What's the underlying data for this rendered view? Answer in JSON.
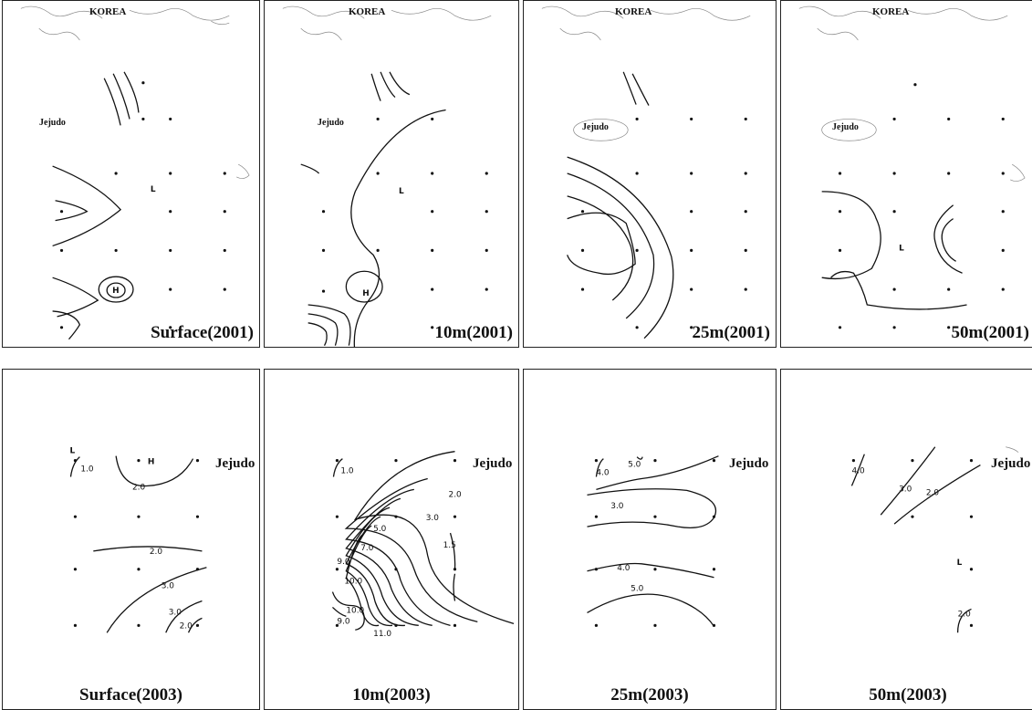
{
  "top_row": [
    {
      "title": "Surface(2001)",
      "korea": "KOREA",
      "jejudo": "Jejudo",
      "marks": {
        "L": "L",
        "H": "H"
      }
    },
    {
      "title": "10m(2001)",
      "korea": "KOREA",
      "jejudo": "Jejudo",
      "marks": {
        "L": "L",
        "H": "H"
      }
    },
    {
      "title": "25m(2001)",
      "korea": "KOREA",
      "jejudo": "Jejudo"
    },
    {
      "title": "50m(2001)",
      "korea": "KOREA",
      "jejudo": "Jejudo",
      "marks": {
        "L": "L"
      }
    }
  ],
  "bottom_row": [
    {
      "title": "Surface(2003)",
      "jejudo": "Jejudo",
      "marks": {
        "L": "L",
        "H": "H"
      },
      "contour_labels": [
        "1.0",
        "2.0",
        "2.0",
        "3.0",
        "3.0",
        "2.0"
      ]
    },
    {
      "title": "10m(2003)",
      "jejudo": "Jejudo",
      "contour_labels": [
        "1.0",
        "2.0",
        "3.0",
        "5.0",
        "7.0",
        "9.0",
        "10.0",
        "10.0",
        "9.0",
        "11.0",
        "1.5"
      ]
    },
    {
      "title": "25m(2003)",
      "jejudo": "Jejudo",
      "contour_labels": [
        "4.0",
        "5.0",
        "3.0",
        "4.0",
        "5.0"
      ]
    },
    {
      "title": "50m(2003)",
      "jejudo": "Jejudo",
      "marks": {
        "L": "L"
      },
      "contour_labels": [
        "4.0",
        "3.0",
        "2.0",
        "2.0"
      ]
    }
  ]
}
